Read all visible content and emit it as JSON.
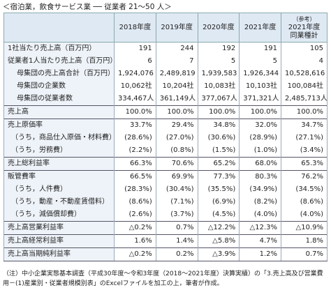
{
  "title": "＜宿泊業，飲食サービス業 ── 従業者 21～50 人＞",
  "table": {
    "header": [
      "2018年度",
      "2019年度",
      "2020年度",
      "2021年度",
      [
        "（参考）",
        "2021年度",
        "同業種計"
      ]
    ],
    "rows": [
      [
        "1社当たり売上高（百万円）",
        "191",
        "244",
        "192",
        "191",
        "105"
      ],
      [
        "従業者1人当たり売上高（百万円）",
        "6",
        "7",
        "5",
        "5",
        "4"
      ],
      [
        "母集団の売上高合計（百万円）",
        "1,924,076",
        "2,489,819",
        "1,939,583",
        "1,926,344",
        "10,528,616"
      ],
      [
        "母集団の企業数",
        "10,062社",
        "10,204社",
        "10,083社",
        "10,103社",
        "100,084社"
      ],
      [
        "母集団の従業者数",
        "334,467人",
        "361,149人",
        "377,067人",
        "371,321人",
        "2,485,713人"
      ],
      [
        "売上高",
        "100.0%",
        "100.0%",
        "100.0%",
        "100.0%",
        "100.0%"
      ],
      [
        "売上原価率",
        "33.7%",
        "29.4%",
        "34.8%",
        "32.0%",
        "34.7%"
      ],
      [
        "（うち，商品仕入原価・材料費）",
        "(28.6%)",
        "(27.0%)",
        "(30.6%)",
        "(28.9%)",
        "(27.1%)"
      ],
      [
        "（うち，労務費）",
        "(2.2%)",
        "(0.8%)",
        "(1.5%)",
        "(1.0%)",
        "(3.4%)"
      ],
      [
        "売上総利益率",
        "66.3%",
        "70.6%",
        "65.2%",
        "68.0%",
        "65.3%"
      ],
      [
        "販管費率",
        "66.5%",
        "69.9%",
        "77.3%",
        "80.3%",
        "76.2%"
      ],
      [
        "（うち，人件費）",
        "(28.3%)",
        "(30.4%)",
        "(35.5%)",
        "(34.9%)",
        "(34.5%)"
      ],
      [
        "（うち，動産・不動産賃借料）",
        "(8.6%)",
        "(7.1%)",
        "(6.9%)",
        "(8.2%)",
        "(8.6%)"
      ],
      [
        "（うち，減価償却費）",
        "(2.6%)",
        "(3.7%)",
        "(4.5%)",
        "(4.0%)",
        "(4.0%)"
      ],
      [
        "売上高営業利益率",
        "△0.2%",
        "0.7%",
        "△12.2%",
        "△12.3%",
        "△10.9%"
      ],
      [
        "売上高経常利益率",
        "1.6%",
        "1.4%",
        "△5.8%",
        "4.7%",
        "1.8%"
      ],
      [
        "売上高当期純利益率",
        "△0.2%",
        "0.2%",
        "△3.9%",
        "1.2%",
        "0.7%"
      ]
    ]
  },
  "note": "（注）中小企業実態基本調査（平成30年度～令和3年度（2018～2021年度）決算実績）の「3.売上高及び営業費用－(1)産業別・従業者規模別表」のExcelファイルを加工の上，筆者が作成。"
}
